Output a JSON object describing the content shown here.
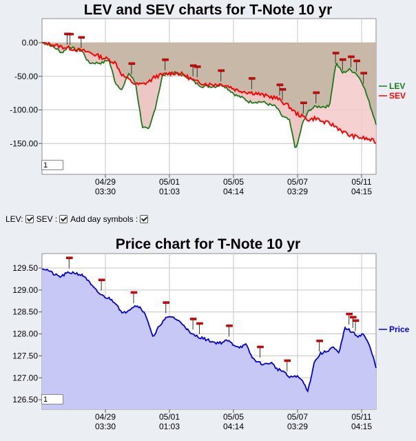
{
  "lev_chart": {
    "title": "LEV and SEV charts for T-Note 10 yr",
    "page_value": "1",
    "legend": [
      {
        "label": "LEV",
        "color": "#1a7a1a"
      },
      {
        "label": "SEV",
        "color": "#ff0000"
      }
    ]
  },
  "price_chart": {
    "title": "Price chart for T-Note 10 yr",
    "page_value": "1",
    "legend": [
      {
        "label": "Price",
        "color": "#0000dd"
      }
    ]
  },
  "controls": {
    "lev_label": "LEV:",
    "sev_label": "SEV :",
    "day_symbols_label": "Add day symbols :"
  },
  "chart_data": [
    {
      "type": "line",
      "title": "LEV and SEV charts for T-Note 10 yr",
      "x_ticks": [
        {
          "date": "04/29",
          "time": "03:30"
        },
        {
          "date": "05/01",
          "time": "01:03"
        },
        {
          "date": "05/05",
          "time": "04:14"
        },
        {
          "date": "05/07",
          "time": "03:29"
        },
        {
          "date": "05/11",
          "time": "04:15"
        }
      ],
      "y_ticks": [
        "0.00",
        "-50.00",
        "-100.00",
        "-150.00"
      ],
      "ylim": [
        -190,
        35
      ],
      "series": [
        {
          "name": "LEV",
          "color": "#1a7a1a",
          "values": [
            0,
            -2,
            -8,
            -15,
            -5,
            -10,
            -12,
            -30,
            -30,
            -30,
            -25,
            -60,
            -70,
            -45,
            -60,
            -125,
            -130,
            -95,
            -50,
            -45,
            -45,
            -48,
            -52,
            -60,
            -65,
            -65,
            -65,
            -62,
            -70,
            -78,
            -82,
            -88,
            -88,
            -88,
            -92,
            -95,
            -110,
            -115,
            -160,
            -120,
            -100,
            -95,
            -95,
            -95,
            -30,
            -45,
            -40,
            -45,
            -60,
            -90,
            -120
          ]
        },
        {
          "name": "SEV",
          "color": "#ff0000",
          "values": [
            0,
            -1,
            -4,
            -6,
            -8,
            -10,
            -12,
            -14,
            -18,
            -22,
            -25,
            -30,
            -48,
            -55,
            -62,
            -62,
            -58,
            -50,
            -48,
            -46,
            -45,
            -47,
            -52,
            -58,
            -60,
            -62,
            -62,
            -62,
            -65,
            -70,
            -72,
            -74,
            -75,
            -78,
            -80,
            -82,
            -88,
            -95,
            -105,
            -110,
            -115,
            -112,
            -118,
            -120,
            -125,
            -132,
            -138,
            -140,
            -142,
            -144,
            -148
          ]
        }
      ],
      "fill_colors": {
        "lev_above": "#c8b8a8",
        "sev_between": "#f3c9c9",
        "lev_between": "#b8d0b8"
      }
    },
    {
      "type": "area",
      "title": "Price chart for T-Note 10 yr",
      "x_ticks": [
        {
          "date": "04/29",
          "time": "03:30"
        },
        {
          "date": "05/01",
          "time": "01:03"
        },
        {
          "date": "05/05",
          "time": "04:14"
        },
        {
          "date": "05/07",
          "time": "03:29"
        },
        {
          "date": "05/11",
          "time": "04:15"
        }
      ],
      "y_ticks": [
        "129.50",
        "129.00",
        "128.50",
        "128.00",
        "127.50",
        "127.00",
        "126.50"
      ],
      "ylim": [
        126.3,
        129.8
      ],
      "series": [
        {
          "name": "Price",
          "color": "#0000dd",
          "values": [
            129.5,
            129.45,
            129.35,
            129.3,
            129.38,
            129.4,
            129.36,
            129.3,
            129.1,
            128.95,
            128.85,
            128.8,
            128.7,
            128.45,
            128.55,
            128.65,
            128.6,
            128.35,
            127.9,
            128.2,
            128.35,
            128.4,
            128.3,
            128.2,
            128.0,
            127.95,
            127.9,
            127.85,
            127.8,
            127.8,
            127.85,
            127.75,
            127.7,
            127.75,
            127.45,
            127.35,
            127.3,
            127.35,
            127.2,
            127.15,
            127.0,
            127.05,
            126.95,
            126.7,
            127.35,
            127.55,
            127.6,
            127.7,
            127.55,
            128.15,
            128.05,
            127.95,
            128.0,
            127.7,
            127.25
          ]
        }
      ],
      "fill_color": "#c8c8f6"
    }
  ]
}
